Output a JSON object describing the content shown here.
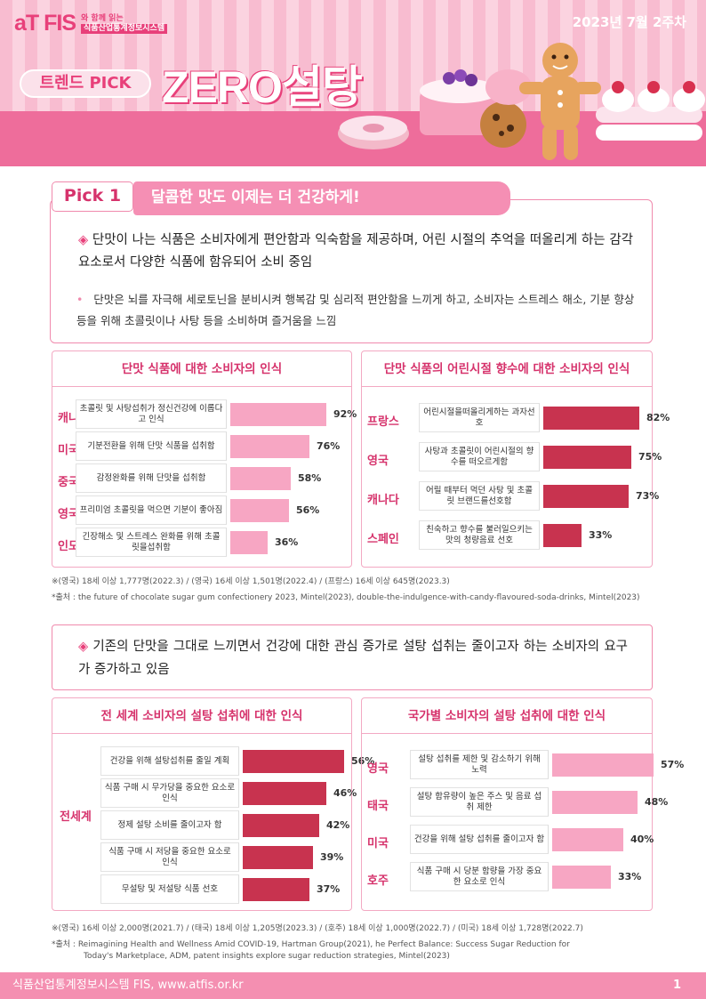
{
  "header": {
    "logo": "aT FIS",
    "logo_line1": "와 함께 읽는",
    "logo_line2": "식품산업통계정보시스템",
    "week": "2023년 7월 2주차",
    "badge": "트렌드 PICK",
    "title": "ZERO설탕",
    "colors": {
      "pink": "#e8407a",
      "band": "#ee6d9b",
      "light": "#f9c6d6"
    }
  },
  "pick1": {
    "label": "Pick 1",
    "headline": "달콤한 맛도 이제는 더 건강하게!",
    "bullet_main": "단맛이 나는 식품은 소비자에게 편안함과 익숙함을 제공하며, 어린 시절의 추억을 떠올리게 하는 감각요소로서 다양한 식품에 함유되어 소비 중임",
    "bullet_sub": "단맛은 뇌를 자극해 세로토닌을 분비시켜 행복감 및 심리적 편안함을 느끼게 하고, 소비자는 스트레스 해소, 기분 향상 등을 위해 초콜릿이나 사탕 등을 소비하며 즐거움을 느낌"
  },
  "chart_data": [
    {
      "type": "bar",
      "title": "단맛 식품에 대한 소비자의 인식",
      "categories": [
        "캐나다",
        "미국",
        "중국",
        "영국",
        "인도"
      ],
      "descriptions": [
        "초콜릿 및 사탕섭취가 정신건강에 이롭다고 인식",
        "기분전환을 위해 단맛 식품을 섭취함",
        "감정완화를 위해 단맛을 섭취함",
        "프리미엄 초콜릿을 먹으면 기분이 좋아짐",
        "긴장해소 및 스트레스 완화를 위해 초콜릿을섭취함"
      ],
      "values": [
        92,
        76,
        58,
        56,
        36
      ],
      "labels": [
        "92%",
        "76%",
        "58%",
        "56%",
        "36%"
      ],
      "color": "#f7a6c3"
    },
    {
      "type": "bar",
      "title": "단맛 식품의 어린시절 향수에 대한 소비자의 인식",
      "categories": [
        "프랑스",
        "영국",
        "캐나다",
        "스페인"
      ],
      "descriptions": [
        "어린시절을떠올리게하는 과자선호",
        "사탕과 초콜릿이 어린시절의 향수를 떠오르게함",
        "어릴 때부터 먹던 사탕 및 초콜릿 브랜드를선호함",
        "친숙하고 향수를 불러일으키는 맛의 청량음료 선호"
      ],
      "values": [
        82,
        75,
        73,
        33
      ],
      "labels": [
        "82%",
        "75%",
        "73%",
        "33%"
      ],
      "color": "#c8334f"
    },
    {
      "type": "bar",
      "title": "전 세계 소비자의 설탕 섭취에 대한 인식",
      "group": "전세계",
      "descriptions": [
        "건강을 위해 설탕섭취를 줄일 계획",
        "식품 구매 시 무가당을 중요한 요소로 인식",
        "정제 설탕 소비를 줄이고자 함",
        "식품 구매 시 저당을 중요한 요소로 인식",
        "무설탕 및 저설탕 식품 선호"
      ],
      "values": [
        56,
        46,
        42,
        39,
        37
      ],
      "labels": [
        "56%",
        "46%",
        "42%",
        "39%",
        "37%"
      ],
      "color": "#c8334f"
    },
    {
      "type": "bar",
      "title": "국가별 소비자의 설탕 섭취에 대한 인식",
      "categories": [
        "영국",
        "태국",
        "미국",
        "호주"
      ],
      "descriptions": [
        "설탕 섭취를 제한 및 감소하기 위해 노력",
        "설탕 함유량이 높은 주스 및 음료 섭취 제한",
        "건강을 위해 설탕 섭취를 줄이고자 함",
        "식품 구매 시 당분 함량을 가장 중요한 요소로 인식"
      ],
      "values": [
        57,
        48,
        40,
        33
      ],
      "labels": [
        "57%",
        "48%",
        "40%",
        "33%"
      ],
      "color": "#f7a6c3"
    }
  ],
  "notes1": {
    "sample": "※(영국) 18세 이상 1,777명(2022.3) / (영국) 16세 이상 1,501명(2022.4) / (프랑스) 16세 이상 645명(2023.3)",
    "source": "*출처 : the future of chocolate sugar gum confectionery 2023, Mintel(2023), double-the-indulgence-with-candy-flavoured-soda-drinks, Mintel(2023)"
  },
  "pick2": {
    "bullet": "기존의 단맛을 그대로 느끼면서 건강에 대한 관심 증가로 설탕 섭취는 줄이고자 하는 소비자의 요구가 증가하고 있음"
  },
  "notes2": {
    "sample": "※(영국) 16세 이상 2,000명(2021.7) / (태국) 18세 이상 1,205명(2023.3) / (호주) 18세 이상 1,000명(2022.7) / (미국) 18세 이상 1,728명(2022.7)",
    "source_a": "*출처 : Reimagining Health and Wellness Amid COVID-19, Hartman Group(2021), he Perfect Balance: Success Sugar Reduction for",
    "source_b": "Today's Marketplace, ADM, patent insights explore sugar reduction strategies, Mintel(2023)"
  },
  "footer": {
    "text": "식품산업통계정보시스템 FIS, www.atfis.or.kr",
    "page": "1"
  }
}
